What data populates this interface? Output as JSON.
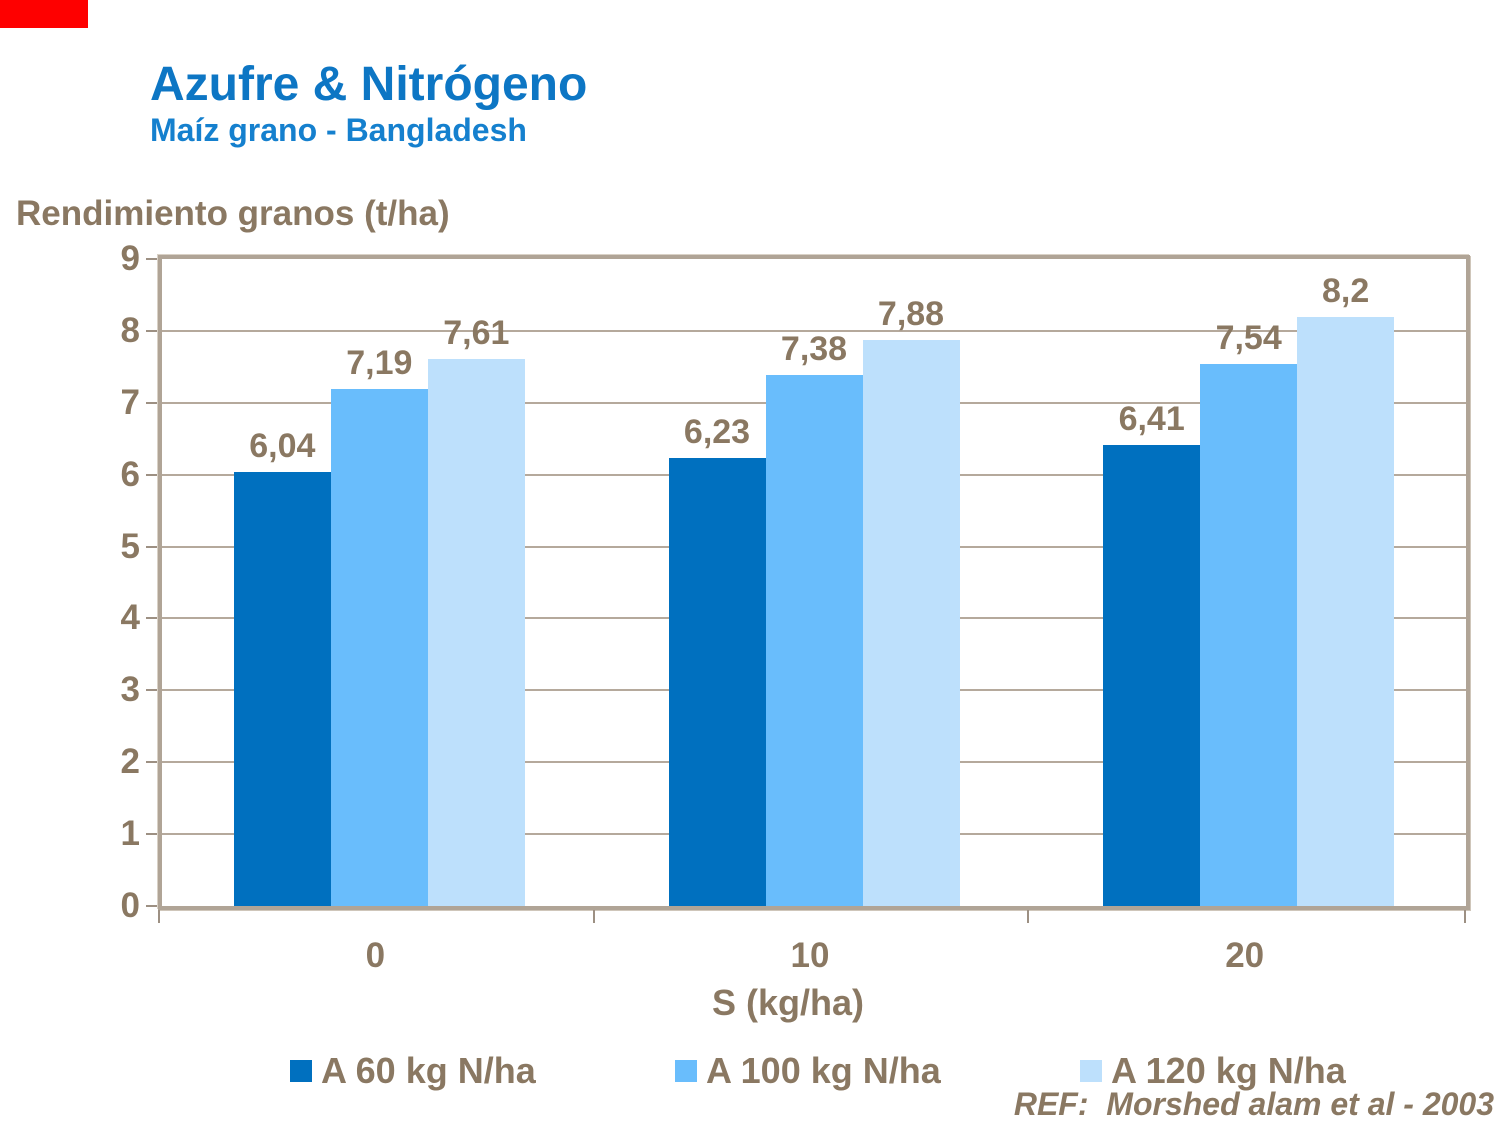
{
  "header": {
    "title": "Azufre & Nitrógeno",
    "subtitle": "Maíz grano - Bangladesh"
  },
  "footer": {
    "ref": "REF:  Morshed alam et al - 2003"
  },
  "colors": {
    "title_blue": "#0d76c4",
    "subtitle_blue": "#1580ce",
    "text_brown": "#8a7862",
    "gridline": "#b5a99c",
    "frame": "#b0a496",
    "red_corner_bar": "#fe0000",
    "series_dark_blue": "#0070bf",
    "series_medium_blue": "#69bdfc",
    "series_light_blue": "#bde0fc"
  },
  "chart_data": {
    "type": "bar",
    "title": "Azufre & Nitrógeno",
    "subtitle": "Maíz grano - Bangladesh",
    "ylabel": "Rendimiento granos (t/ha)",
    "xlabel": "S (kg/ha)",
    "categories": [
      "0",
      "10",
      "20"
    ],
    "series": [
      {
        "name": "A 60 kg N/ha",
        "color": "#0070bf",
        "values": [
          6.04,
          6.23,
          6.41
        ],
        "labels": [
          "6,04",
          "6,23",
          "6,41"
        ]
      },
      {
        "name": "A 100 kg N/ha",
        "color": "#69bdfc",
        "values": [
          7.19,
          7.38,
          7.54
        ],
        "labels": [
          "7,19",
          "7,38",
          "7,54"
        ]
      },
      {
        "name": "A 120 kg N/ha",
        "color": "#bde0fc",
        "values": [
          7.61,
          7.88,
          8.2
        ],
        "labels": [
          "7,61",
          "7,88",
          "8,2"
        ]
      }
    ],
    "ylim": [
      0,
      9
    ],
    "yticks": [
      0,
      1,
      2,
      3,
      4,
      5,
      6,
      7,
      8,
      9
    ],
    "grid": true,
    "legend_position": "bottom",
    "decimal_separator": ","
  }
}
